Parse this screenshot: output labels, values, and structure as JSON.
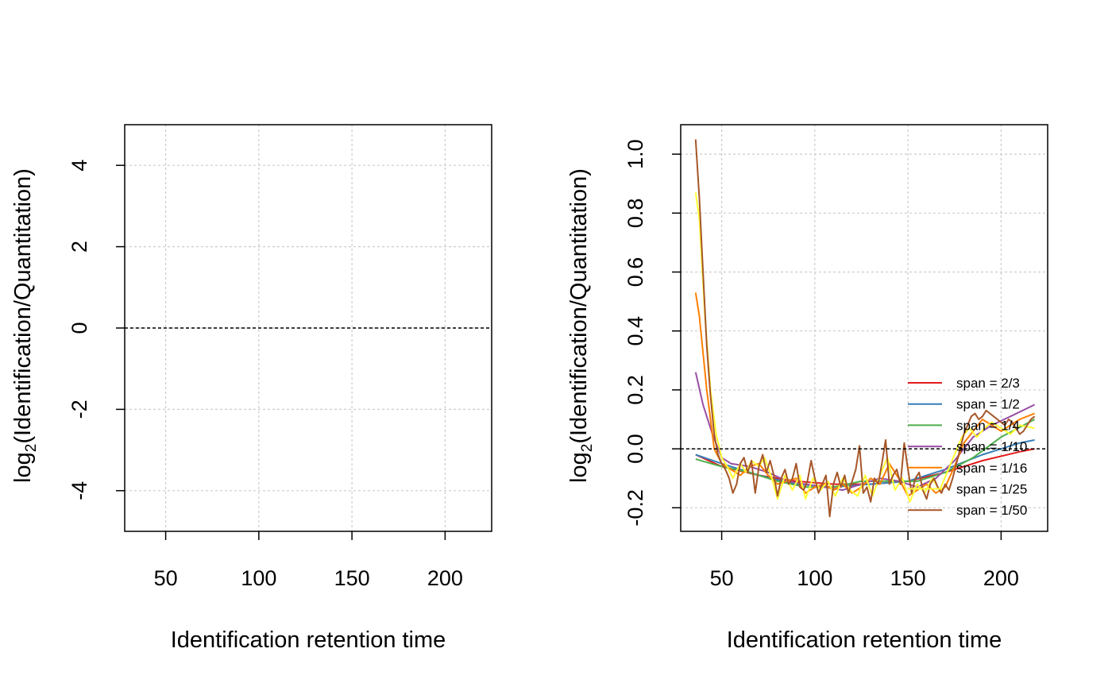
{
  "chart_data": [
    {
      "type": "line",
      "xlabel": "Identification retention time",
      "ylabel_main": "log",
      "ylabel_sub": "2",
      "ylabel_rest": "(Identification/Quantitation)",
      "xlim": [
        28,
        225
      ],
      "ylim": [
        -5,
        5
      ],
      "xticks": [
        50,
        100,
        150,
        200
      ],
      "yticks": [
        -4,
        -2,
        0,
        2,
        4
      ],
      "ytick_labels": [
        "-4",
        "-2",
        "0",
        "2",
        "4"
      ],
      "grid": true,
      "reference_line": 0,
      "series": []
    },
    {
      "type": "line",
      "xlabel": "Identification retention time",
      "ylabel_main": "log",
      "ylabel_sub": "2",
      "ylabel_rest": "(Identification/Quantitation)",
      "xlim": [
        28,
        225
      ],
      "ylim": [
        -0.28,
        1.1
      ],
      "xticks": [
        50,
        100,
        150,
        200
      ],
      "yticks": [
        -0.2,
        0.0,
        0.2,
        0.4,
        0.6,
        0.8,
        1.0
      ],
      "ytick_labels": [
        "-0.2",
        "0.0",
        "0.2",
        "0.4",
        "0.6",
        "0.8",
        "1.0"
      ],
      "grid": true,
      "reference_line": 0,
      "legend_position": "bottom-right",
      "series": [
        {
          "name": "span = 2/3",
          "color": "#e41a1c",
          "x": [
            36,
            50,
            70,
            90,
            110,
            130,
            150,
            170,
            190,
            210,
            218
          ],
          "y": [
            -0.02,
            -0.06,
            -0.09,
            -0.11,
            -0.12,
            -0.12,
            -0.11,
            -0.08,
            -0.04,
            -0.01,
            0.0
          ]
        },
        {
          "name": "span = 1/2",
          "color": "#377eb8",
          "x": [
            36,
            50,
            70,
            90,
            110,
            130,
            150,
            170,
            190,
            210,
            218
          ],
          "y": [
            -0.02,
            -0.05,
            -0.09,
            -0.12,
            -0.13,
            -0.12,
            -0.11,
            -0.07,
            -0.02,
            0.02,
            0.03
          ]
        },
        {
          "name": "span = 1/4",
          "color": "#4daf4a",
          "x": [
            36,
            50,
            65,
            80,
            95,
            110,
            125,
            140,
            155,
            170,
            185,
            200,
            218
          ],
          "y": [
            -0.035,
            -0.06,
            -0.08,
            -0.11,
            -0.13,
            -0.13,
            -0.11,
            -0.11,
            -0.11,
            -0.08,
            -0.03,
            0.04,
            0.1
          ]
        },
        {
          "name": "span = 1/10",
          "color": "#984ea3",
          "x": [
            36,
            40,
            45,
            50,
            55,
            65,
            75,
            85,
            95,
            105,
            115,
            125,
            135,
            145,
            155,
            165,
            175,
            185,
            195,
            205,
            218
          ],
          "y": [
            0.26,
            0.15,
            0.05,
            -0.03,
            -0.05,
            -0.06,
            -0.08,
            -0.11,
            -0.12,
            -0.13,
            -0.14,
            -0.12,
            -0.1,
            -0.11,
            -0.13,
            -0.1,
            -0.04,
            0.04,
            0.08,
            0.11,
            0.15
          ]
        },
        {
          "name": "span = 1/16",
          "color": "#ff7f00",
          "x": [
            36,
            38,
            42,
            46,
            50,
            55,
            60,
            65,
            70,
            75,
            80,
            85,
            90,
            95,
            100,
            105,
            110,
            115,
            120,
            125,
            130,
            135,
            140,
            145,
            150,
            155,
            160,
            165,
            170,
            175,
            180,
            185,
            190,
            195,
            200,
            205,
            210,
            218
          ],
          "y": [
            0.53,
            0.45,
            0.2,
            0.0,
            -0.05,
            -0.07,
            -0.09,
            -0.06,
            -0.05,
            -0.09,
            -0.12,
            -0.11,
            -0.1,
            -0.15,
            -0.13,
            -0.12,
            -0.14,
            -0.12,
            -0.15,
            -0.13,
            -0.1,
            -0.12,
            -0.05,
            -0.1,
            -0.16,
            -0.14,
            -0.12,
            -0.15,
            -0.13,
            -0.06,
            0.02,
            0.06,
            0.1,
            0.08,
            0.06,
            0.08,
            0.1,
            0.12
          ]
        },
        {
          "name": "span = 1/25",
          "color": "#ffff33",
          "x": [
            36,
            38,
            41,
            44,
            47,
            50,
            53,
            56,
            60,
            63,
            66,
            70,
            73,
            77,
            80,
            84,
            88,
            92,
            95,
            99,
            103,
            107,
            111,
            115,
            119,
            123,
            127,
            131,
            135,
            139,
            143,
            147,
            151,
            155,
            159,
            163,
            167,
            171,
            175,
            179,
            183,
            187,
            191,
            195,
            200,
            205,
            210,
            218
          ],
          "y": [
            0.87,
            0.78,
            0.45,
            0.2,
            0.05,
            -0.03,
            -0.06,
            -0.1,
            -0.05,
            -0.08,
            -0.04,
            -0.06,
            -0.03,
            -0.1,
            -0.17,
            -0.09,
            -0.14,
            -0.09,
            -0.17,
            -0.1,
            -0.14,
            -0.11,
            -0.16,
            -0.1,
            -0.14,
            -0.16,
            -0.09,
            -0.16,
            -0.09,
            -0.03,
            -0.14,
            -0.1,
            -0.18,
            -0.12,
            -0.15,
            -0.1,
            -0.14,
            -0.08,
            -0.02,
            0.04,
            0.07,
            0.04,
            0.07,
            0.09,
            0.07,
            0.05,
            0.08,
            0.07
          ]
        },
        {
          "name": "span = 1/50",
          "color": "#a65628",
          "x": [
            36,
            38,
            40,
            42,
            44,
            46,
            48,
            50,
            52,
            54,
            56,
            58,
            60,
            62,
            64,
            66,
            68,
            70,
            72,
            74,
            76,
            78,
            80,
            82,
            84,
            86,
            88,
            90,
            92,
            94,
            96,
            98,
            100,
            102,
            104,
            106,
            108,
            110,
            112,
            114,
            116,
            118,
            120,
            122,
            124,
            126,
            128,
            130,
            132,
            134,
            136,
            138,
            140,
            142,
            144,
            146,
            148,
            150,
            152,
            154,
            156,
            158,
            160,
            162,
            164,
            166,
            168,
            170,
            172,
            174,
            176,
            178,
            180,
            182,
            184,
            186,
            188,
            190,
            192,
            194,
            196,
            198,
            200,
            202,
            204,
            206,
            208,
            210,
            212,
            214,
            216,
            218
          ],
          "y": [
            1.05,
            0.85,
            0.6,
            0.35,
            0.18,
            0.05,
            -0.02,
            -0.05,
            -0.07,
            -0.1,
            -0.15,
            -0.12,
            -0.05,
            -0.03,
            -0.08,
            -0.04,
            -0.15,
            -0.06,
            -0.02,
            -0.08,
            -0.04,
            -0.09,
            -0.16,
            -0.1,
            -0.07,
            -0.12,
            -0.1,
            -0.05,
            -0.13,
            -0.14,
            -0.11,
            -0.04,
            -0.1,
            -0.15,
            -0.12,
            -0.09,
            -0.23,
            -0.12,
            -0.08,
            -0.13,
            -0.09,
            -0.15,
            -0.11,
            -0.07,
            0.01,
            -0.15,
            -0.13,
            -0.18,
            -0.1,
            -0.12,
            -0.05,
            0.03,
            -0.12,
            -0.09,
            -0.07,
            -0.12,
            0.02,
            -0.07,
            -0.15,
            -0.1,
            -0.08,
            -0.14,
            -0.17,
            -0.12,
            -0.1,
            -0.13,
            -0.15,
            -0.12,
            -0.14,
            -0.1,
            -0.05,
            0.0,
            0.05,
            0.08,
            0.11,
            0.12,
            0.1,
            0.11,
            0.13,
            0.12,
            0.11,
            0.1,
            0.09,
            0.08,
            0.1,
            0.09,
            0.07,
            0.05,
            0.06,
            0.08,
            0.1,
            0.11
          ]
        }
      ]
    }
  ]
}
